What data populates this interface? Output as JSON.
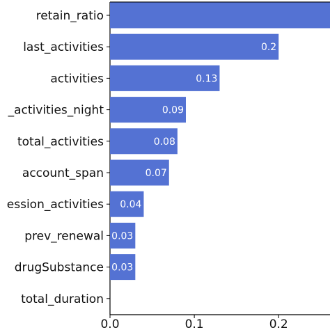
{
  "chart_data": {
    "type": "bar",
    "orientation": "horizontal",
    "categories": [
      "retain_ratio",
      "last_activities",
      "activities",
      "_activities_night",
      "total_activities",
      "account_span",
      "ession_activities",
      "prev_renewal",
      "drugSubstance",
      "total_duration"
    ],
    "values": [
      0.27,
      0.2,
      0.13,
      0.09,
      0.08,
      0.07,
      0.04,
      0.03,
      0.03,
      0.0
    ],
    "data_labels": [
      "",
      "0.2",
      "0.13",
      "0.09",
      "0.08",
      "0.07",
      "0.04",
      "0.03",
      "0.03",
      ""
    ],
    "xlim": [
      0,
      0.27
    ],
    "xticks": [
      0.0,
      0.1,
      0.2
    ],
    "xtick_labels": [
      "0.0",
      "0.1",
      "0.2"
    ],
    "bar_color": "#5472d3",
    "title": "",
    "xlabel": "",
    "ylabel": "",
    "grid": false,
    "legend": "none"
  }
}
